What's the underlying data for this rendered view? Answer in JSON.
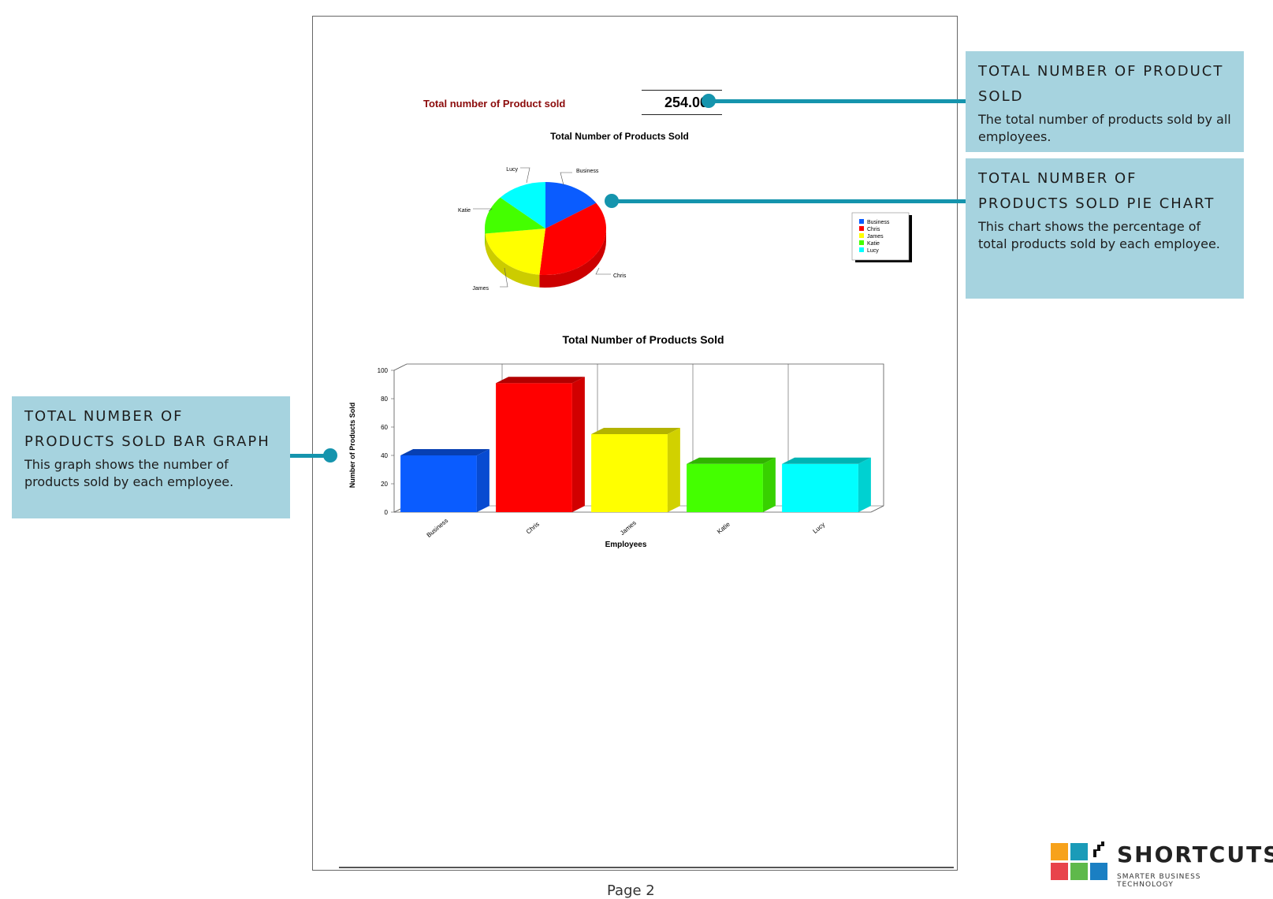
{
  "total": {
    "label": "Total number of Product sold",
    "value": "254.00"
  },
  "pie_title": "Total Number of Products Sold",
  "bar_title": "Total Number of Products Sold",
  "callouts": {
    "product_sold": {
      "title": "TOTAL NUMBER OF PRODUCT SOLD",
      "body": "The total number of products sold by all employees."
    },
    "pie_chart": {
      "title": "TOTAL NUMBER OF PRODUCTS SOLD PIE CHART",
      "body": "This chart shows the percentage of total products sold by each employee."
    },
    "bar_graph": {
      "title": "TOTAL NUMBER OF PRODUCTS SOLD BAR GRAPH",
      "body": "This graph shows the number of products sold by each employee."
    }
  },
  "footer": {
    "page_label": "Page 2"
  },
  "logo": {
    "name": "SHORTCUTS",
    "tagline": "SMARTER BUSINESS TECHNOLOGY",
    "squares": [
      "#f7a21b",
      "#1a9bb8",
      "#e8434b",
      "#5fb94b",
      "#1a7fc3"
    ]
  },
  "colors": {
    "callout_bg": "#a6d3df",
    "connector": "#1594ad",
    "total_label": "#8b0a0a"
  },
  "chart_data": [
    {
      "type": "pie",
      "title": "Total Number of Products Sold",
      "categories": [
        "Business",
        "Chris",
        "James",
        "Katie",
        "Lucy"
      ],
      "values": [
        40,
        91,
        55,
        34,
        34
      ],
      "colors": [
        "#0a5cff",
        "#ff0000",
        "#ffff00",
        "#44ff00",
        "#00ffff"
      ],
      "legend": "right"
    },
    {
      "type": "bar",
      "title": "Total Number of Products Sold",
      "categories": [
        "Business",
        "Chris",
        "James",
        "Katie",
        "Lucy"
      ],
      "values": [
        40,
        91,
        55,
        34,
        34
      ],
      "colors": [
        "#0a5cff",
        "#ff0000",
        "#ffff00",
        "#44ff00",
        "#00ffff"
      ],
      "xlabel": "Employees",
      "ylabel": "Number of Products Sold",
      "ylim": [
        0,
        100
      ],
      "yticks": [
        0,
        20,
        40,
        60,
        80,
        100
      ]
    }
  ]
}
